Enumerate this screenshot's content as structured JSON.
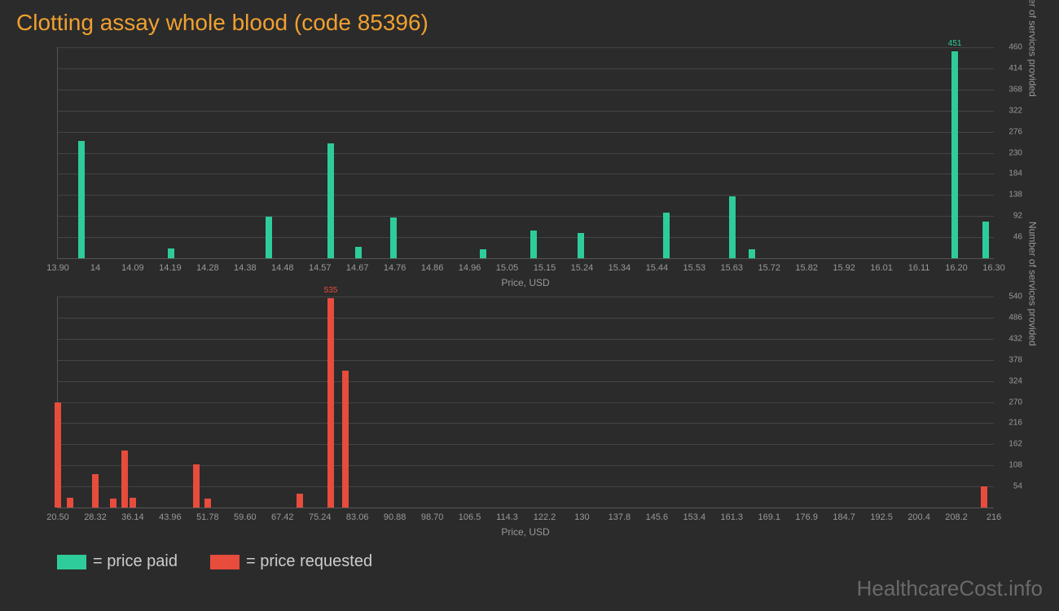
{
  "title": "Clotting assay whole blood (code 85396)",
  "colors": {
    "background": "#2b2b2b",
    "title": "#f0a030",
    "paid": "#2ecc9a",
    "requested": "#e74c3c",
    "axis": "#555",
    "grid": "#444",
    "tick_text": "#999",
    "legend_text": "#ccc",
    "footer": "#6a6a6a"
  },
  "chart1": {
    "type": "bar",
    "xlabel": "Price, USD",
    "ylabel": "Number of services provided",
    "ylim": [
      0,
      460
    ],
    "yticks": [
      46,
      92,
      138,
      184,
      230,
      276,
      322,
      368,
      414,
      460
    ],
    "xlim": [
      13.9,
      16.3
    ],
    "xticks": [
      "13.90",
      "14",
      "14.09",
      "14.19",
      "14.28",
      "14.38",
      "14.48",
      "14.57",
      "14.67",
      "14.76",
      "14.86",
      "14.96",
      "15.05",
      "15.15",
      "15.24",
      "15.34",
      "15.44",
      "15.53",
      "15.63",
      "15.72",
      "15.82",
      "15.92",
      "16.01",
      "16.11",
      "16.20",
      "16.30"
    ],
    "bars": [
      {
        "x": 13.96,
        "y": 255
      },
      {
        "x": 14.19,
        "y": 22
      },
      {
        "x": 14.44,
        "y": 90
      },
      {
        "x": 14.6,
        "y": 250
      },
      {
        "x": 14.67,
        "y": 25
      },
      {
        "x": 14.76,
        "y": 88
      },
      {
        "x": 14.99,
        "y": 20
      },
      {
        "x": 15.12,
        "y": 60
      },
      {
        "x": 15.24,
        "y": 55
      },
      {
        "x": 15.46,
        "y": 100
      },
      {
        "x": 15.63,
        "y": 135
      },
      {
        "x": 15.68,
        "y": 20
      },
      {
        "x": 16.2,
        "y": 451,
        "label": "451"
      },
      {
        "x": 16.28,
        "y": 80
      }
    ],
    "bar_color": "#2ecc9a",
    "label_color": "#2ecc9a"
  },
  "chart2": {
    "type": "bar",
    "xlabel": "Price, USD",
    "ylabel": "Number of services provided",
    "ylim": [
      0,
      540
    ],
    "yticks": [
      54,
      108,
      162,
      216,
      270,
      324,
      378,
      432,
      486,
      540
    ],
    "xlim": [
      20.5,
      216
    ],
    "xticks": [
      "20.50",
      "28.32",
      "36.14",
      "43.96",
      "51.78",
      "59.60",
      "67.42",
      "75.24",
      "83.06",
      "90.88",
      "98.70",
      "106.5",
      "114.3",
      "122.2",
      "130",
      "137.8",
      "145.6",
      "153.4",
      "161.3",
      "169.1",
      "176.9",
      "184.7",
      "192.5",
      "200.4",
      "208.2",
      "216"
    ],
    "bars": [
      {
        "x": 20.5,
        "y": 270
      },
      {
        "x": 23.0,
        "y": 25
      },
      {
        "x": 28.32,
        "y": 85
      },
      {
        "x": 32.0,
        "y": 22
      },
      {
        "x": 34.5,
        "y": 145
      },
      {
        "x": 36.14,
        "y": 25
      },
      {
        "x": 49.5,
        "y": 110
      },
      {
        "x": 51.78,
        "y": 22
      },
      {
        "x": 71.0,
        "y": 35
      },
      {
        "x": 77.5,
        "y": 535,
        "label": "535"
      },
      {
        "x": 80.5,
        "y": 350
      },
      {
        "x": 214.0,
        "y": 55
      }
    ],
    "bar_color": "#e74c3c",
    "label_color": "#e74c3c"
  },
  "legend": {
    "paid": "= price paid",
    "requested": "= price requested"
  },
  "footer": "HealthcareCost.info"
}
